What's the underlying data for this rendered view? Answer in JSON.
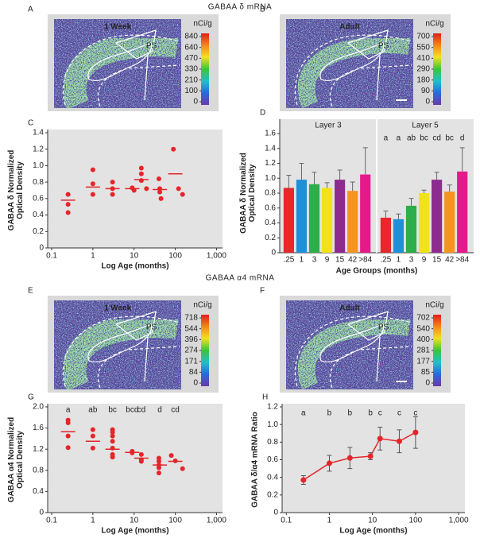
{
  "section_titles": [
    "GABAA δ mRNA",
    "GABAA α4 mRNA"
  ],
  "chart_data": [
    {
      "type": "image",
      "panel": "A",
      "title": "1 Week",
      "annotation": "PS",
      "colorbar_label": "nCi/g",
      "colorbar_ticks": [
        840,
        640,
        470,
        330,
        210,
        100,
        0
      ]
    },
    {
      "type": "image",
      "panel": "B",
      "title": "Adult",
      "annotation": "PS",
      "colorbar_label": "nCi/g",
      "colorbar_ticks": [
        700,
        550,
        410,
        290,
        180,
        90,
        0
      ]
    },
    {
      "type": "scatter",
      "panel": "C",
      "y_label": [
        "GABAA δ Normalized",
        "Optical Density"
      ],
      "x_label": "Log Age (months)",
      "log_x": true,
      "xlim": [
        0.08,
        1400
      ],
      "ylim": [
        0,
        1.4
      ],
      "xticks": [
        0.1,
        1,
        10,
        100,
        {
          "value": 1000,
          "label": "1,000"
        }
      ],
      "yticks": [
        0,
        0.2,
        0.4,
        0.6,
        0.8,
        {
          "value": 1,
          "label": "1.0"
        },
        1.2,
        1.4
      ],
      "color": "#e5252a",
      "series": [
        {
          "marker": "dot",
          "x": [
            0.25,
            0.25,
            0.25,
            1,
            1,
            1,
            3,
            3,
            3,
            9,
            10,
            15,
            15,
            15,
            20,
            40,
            42,
            42,
            45,
            90,
            120,
            150
          ],
          "values": [
            0.65,
            0.53,
            0.43,
            0.95,
            0.78,
            0.65,
            0.8,
            0.72,
            0.65,
            0.73,
            0.7,
            0.97,
            0.9,
            0.82,
            0.72,
            0.84,
            0.72,
            0.68,
            0.6,
            1.2,
            0.72,
            0.65
          ]
        },
        {
          "marker": "dash",
          "x": [
            0.25,
            1,
            3,
            9,
            15,
            42,
            100
          ],
          "values": [
            0.58,
            0.74,
            0.72,
            0.72,
            0.83,
            0.71,
            0.9
          ]
        }
      ]
    },
    {
      "type": "bar",
      "panel": "D",
      "y_label": [
        "GABAA δ Normalized",
        "Optical Density"
      ],
      "x_label": "Age Groups (months)",
      "ylim": [
        0,
        1.6
      ],
      "yticks": [
        0,
        0.2,
        0.4,
        0.6,
        0.8,
        {
          "value": 1,
          "label": "1.0"
        },
        1.2,
        1.4,
        1.6
      ],
      "categories": [
        ".25",
        "1",
        "3",
        "9",
        "15",
        "42",
        ">84"
      ],
      "colors": [
        "#e8262b",
        "#1f8fd8",
        "#2ead4b",
        "#f2e21a",
        "#8e2b8f",
        "#f7931e",
        "#e6198a"
      ],
      "series": [
        {
          "name": "Layer 3",
          "values": [
            0.87,
            0.98,
            0.92,
            0.87,
            0.98,
            0.83,
            1.05
          ],
          "errors": [
            0.17,
            0.22,
            0.16,
            0.07,
            0.13,
            0.12,
            0.36
          ]
        },
        {
          "name": "Layer 5",
          "values": [
            0.47,
            0.45,
            0.63,
            0.8,
            0.98,
            0.82,
            1.09
          ],
          "errors": [
            0.09,
            0.07,
            0.1,
            0.04,
            0.1,
            0.09,
            0.32
          ],
          "letters": [
            "a",
            "a",
            "ab",
            "bc",
            "cd",
            "bc",
            "d"
          ]
        }
      ]
    },
    {
      "type": "image",
      "panel": "E",
      "title": "1 Week",
      "annotation": "PS",
      "colorbar_label": "nCi/g",
      "colorbar_ticks": [
        718,
        544,
        396,
        274,
        171,
        84,
        0
      ]
    },
    {
      "type": "image",
      "panel": "F",
      "title": "Adult",
      "annotation": "PS",
      "colorbar_label": "nCi/g",
      "colorbar_ticks": [
        702,
        540,
        400,
        281,
        177,
        85,
        0
      ]
    },
    {
      "type": "scatter",
      "panel": "G",
      "y_label": [
        "GABAA α4 Normalized",
        "Optical Density"
      ],
      "x_label": "Log Age (months)",
      "log_x": true,
      "xlim": [
        0.08,
        1400
      ],
      "ylim": [
        0,
        2
      ],
      "xticks": [
        0.1,
        1,
        10,
        100,
        {
          "value": 1000,
          "label": "1,000"
        }
      ],
      "yticks": [
        0,
        0.4,
        0.8,
        1.2,
        1.6,
        {
          "value": 2,
          "label": "2.0"
        }
      ],
      "color": "#e5252a",
      "series": [
        {
          "marker": "dot",
          "x": [
            0.25,
            0.25,
            0.25,
            0.25,
            1,
            1,
            1,
            3,
            3,
            3,
            3,
            3,
            3,
            3,
            9,
            9,
            15,
            15,
            15,
            40,
            40,
            40,
            40,
            40,
            80,
            100,
            150
          ],
          "values": [
            1.75,
            1.7,
            1.45,
            1.23,
            1.57,
            1.45,
            1.22,
            1.57,
            1.52,
            1.45,
            1.35,
            1.22,
            1.1,
            1.05,
            1.16,
            1.13,
            1.1,
            1.0,
            0.97,
            1.03,
            0.97,
            0.9,
            0.85,
            0.75,
            1.08,
            0.98,
            0.83
          ]
        },
        {
          "marker": "dash",
          "x": [
            0.25,
            1,
            3,
            9,
            15,
            42,
            100
          ],
          "values": [
            1.53,
            1.35,
            1.2,
            1.14,
            1.03,
            0.9,
            0.97
          ]
        }
      ],
      "letters": [
        "a",
        "ab",
        "bc",
        "bcd",
        "cd",
        "d",
        "cd"
      ]
    },
    {
      "type": "line",
      "panel": "H",
      "y_label": [
        "GABAA δ/α4 mRNA Ratio"
      ],
      "x_label": "Log Age (months)",
      "log_x": true,
      "xlim": [
        0.08,
        1400
      ],
      "ylim": [
        0,
        1.2
      ],
      "xticks": [
        0.1,
        1,
        10,
        100,
        {
          "value": 1000,
          "label": "1,000"
        }
      ],
      "yticks": [
        0,
        0.2,
        0.4,
        0.6,
        0.8,
        {
          "value": 1,
          "label": "1.0"
        },
        1.2
      ],
      "color": "#e5252a",
      "x": [
        0.25,
        1,
        3,
        9,
        15,
        42,
        100
      ],
      "values": [
        0.37,
        0.56,
        0.62,
        0.64,
        0.84,
        0.81,
        0.91
      ],
      "errors": [
        0.05,
        0.09,
        0.12,
        0.04,
        0.13,
        0.13,
        0.18
      ],
      "letters": [
        "a",
        "b",
        "b",
        "b",
        "c",
        "c",
        "c"
      ]
    }
  ]
}
